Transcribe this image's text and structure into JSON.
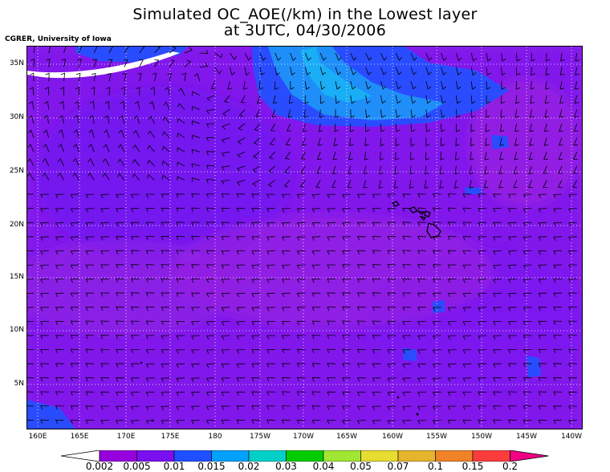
{
  "title": {
    "line1": "Simulated OC_AOE(/km) in the Lowest layer",
    "line2": "at 3UTC, 04/30/2006"
  },
  "credit": "CGRER, University of Iowa",
  "map": {
    "lat_labels": [
      "35N",
      "30N",
      "25N",
      "20N",
      "15N",
      "10N",
      "5N"
    ],
    "lon_labels": [
      "160E",
      "165E",
      "170E",
      "175E",
      "180",
      "175W",
      "170W",
      "165W",
      "160W",
      "155W",
      "150W",
      "145W",
      "140W"
    ],
    "background_color": "#8a1de6",
    "features": [
      "Hawaiian Islands outline",
      "wind barbs",
      "dotted lat/lon grid"
    ]
  },
  "colorbar": {
    "labels": [
      "0.002",
      "0.005",
      "0.01",
      "0.015",
      "0.02",
      "0.03",
      "0.04",
      "0.05",
      "0.07",
      "0.1",
      "0.15",
      "0.2"
    ],
    "colors": [
      "#ffffff",
      "#9600dc",
      "#7a10f0",
      "#1e50ff",
      "#00a0ff",
      "#00d0c8",
      "#00cc00",
      "#a0e632",
      "#e6dc32",
      "#e6b42d",
      "#f08228",
      "#fa3c3c",
      "#f00082"
    ]
  }
}
